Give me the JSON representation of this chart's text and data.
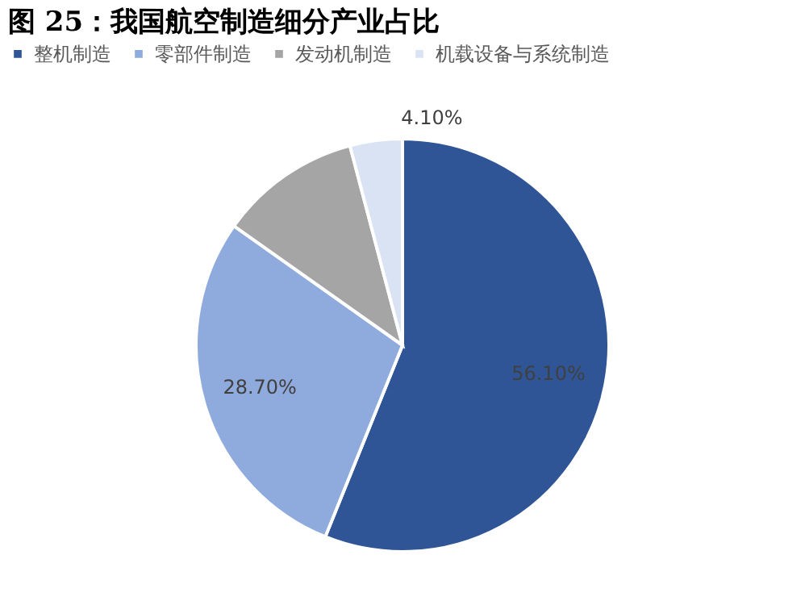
{
  "chart_data": {
    "type": "pie",
    "title": "图 25：我国航空制造细分产业占比",
    "categories": [
      "整机制造",
      "零部件制造",
      "发动机制造",
      "机载设备与系统制造"
    ],
    "values": [
      56.1,
      28.7,
      11.1,
      4.1
    ],
    "colors": [
      "#2f5597",
      "#8faadc",
      "#a5a5a5",
      "#dae3f3"
    ],
    "value_labels": [
      "56.10%",
      "28.70%",
      null,
      "4.10%"
    ],
    "legend": "top"
  }
}
